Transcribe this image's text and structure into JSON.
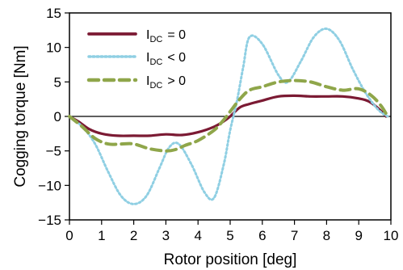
{
  "chart_data": {
    "type": "line",
    "title": "",
    "xlabel": "Rotor position [deg]",
    "ylabel": "Cogging torque [Nm]",
    "xlim": [
      0,
      10
    ],
    "ylim": [
      -15,
      15
    ],
    "x_ticks": [
      0,
      1,
      2,
      3,
      4,
      5,
      6,
      7,
      8,
      9,
      10
    ],
    "y_ticks": [
      15,
      10,
      5,
      0,
      -5,
      -10,
      -15
    ],
    "y_tick_labels": [
      "15",
      "10",
      "5",
      "0",
      "−5",
      "−10",
      "−15"
    ],
    "grid": false,
    "legend_position": "top-left",
    "series": [
      {
        "name": "IDC = 0",
        "legend_main": "I",
        "legend_sub": "DC",
        "legend_rel": "= 0",
        "color": "#7b1a33",
        "style": "solid",
        "x": [
          0,
          0.3,
          0.6,
          1,
          1.5,
          2,
          2.5,
          3,
          3.5,
          4,
          4.5,
          4.8,
          5,
          5.3,
          5.6,
          6,
          6.5,
          7,
          7.5,
          8,
          8.5,
          9,
          9.3,
          9.6,
          9.85
        ],
        "y": [
          0,
          -0.8,
          -1.8,
          -2.5,
          -2.8,
          -2.8,
          -2.8,
          -2.6,
          -2.7,
          -2.3,
          -1.5,
          -0.7,
          0,
          1.3,
          1.8,
          2.3,
          2.9,
          3.0,
          2.9,
          2.9,
          2.9,
          2.6,
          2.2,
          1.2,
          0
        ]
      },
      {
        "name": "IDC < 0",
        "legend_main": "I",
        "legend_sub": "DC",
        "legend_rel": "< 0",
        "color": "#8fcfe3",
        "style": "dotted",
        "x": [
          0,
          0.4,
          0.8,
          1.2,
          1.6,
          2,
          2.4,
          2.8,
          3.1,
          3.4,
          3.8,
          4.2,
          4.5,
          4.8,
          5,
          5.2,
          5.4,
          5.6,
          6,
          6.5,
          6.8,
          7.2,
          7.6,
          8,
          8.4,
          8.8,
          9.2,
          9.6,
          9.9
        ],
        "y": [
          0,
          -1.5,
          -4,
          -8,
          -11.5,
          -12.7,
          -11.5,
          -7.5,
          -4.5,
          -4,
          -7,
          -11,
          -11.8,
          -7,
          -2,
          2,
          7,
          11.5,
          10.5,
          6,
          5,
          8,
          11.5,
          12.7,
          11,
          7,
          3.5,
          1,
          0
        ]
      },
      {
        "name": "IDC > 0",
        "legend_main": "I",
        "legend_sub": "DC",
        "legend_rel": "> 0",
        "color": "#8fa64a",
        "style": "dashed",
        "x": [
          0,
          0.4,
          0.8,
          1.2,
          1.6,
          2,
          2.5,
          3,
          3.3,
          3.6,
          4,
          4.5,
          4.8,
          5,
          5.3,
          5.6,
          6,
          6.5,
          7,
          7.5,
          8,
          8.5,
          9,
          9.4,
          9.7,
          9.9
        ],
        "y": [
          0,
          -1.5,
          -3.2,
          -4,
          -4,
          -4,
          -4.7,
          -5,
          -4.8,
          -4.2,
          -3.5,
          -2,
          -0.5,
          0.7,
          2.5,
          3.8,
          4.3,
          5,
          5.2,
          5,
          4.3,
          3.8,
          4,
          3,
          1.5,
          0
        ]
      }
    ]
  }
}
